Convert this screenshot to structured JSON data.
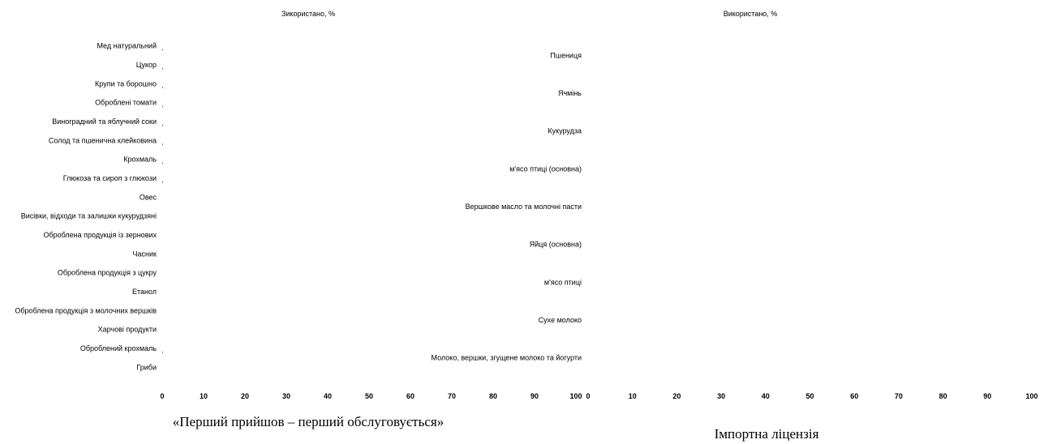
{
  "chart_data": [
    {
      "type": "bar",
      "orientation": "horizontal",
      "title": "Зикористано, %",
      "caption": "«Перший прийшов – перший обслуговується»",
      "categories": [
        "Мед натуральний",
        "Цукор",
        "Крупи та борошно",
        "Оброблені томати",
        "Виноградний та яблучний соки",
        "Солод та пшенична клейковина",
        "Крохмаль",
        "Глюкоза та сироп з глюкози",
        "Овес",
        "Висівки, відходи та залишки кукурудзяні",
        "Оброблена продукція із зернових",
        "Часник",
        "Оброблена продукція з цукру",
        "Етанол",
        "Оброблена продукція з молочних вершків",
        "Харчові продукти",
        "Оброблений крохмаль",
        "Гриби"
      ],
      "values": [
        0.2,
        0.2,
        0.2,
        0.2,
        0.2,
        0.2,
        0.2,
        0.2,
        0,
        0,
        0,
        0,
        0,
        0,
        0,
        0,
        0.2,
        0
      ],
      "xlim": [
        0,
        100
      ],
      "xticks": [
        "0",
        "10",
        "20",
        "30",
        "40",
        "50",
        "60",
        "70",
        "80",
        "90",
        "100"
      ],
      "grid": false
    },
    {
      "type": "bar",
      "orientation": "horizontal",
      "title": "Використано, %",
      "caption": "Імпортна ліцензія",
      "categories": [
        "Пшениця",
        "Ячмінь",
        "Кукурудза",
        "м'ясо птиці (основна)",
        "Вершкове масло та молочні пасти",
        "Яйця (основна)",
        "м'ясо птиці",
        "Сухе молоко",
        "Молоко, вершки, згущене молоко та йогурти"
      ],
      "values": [
        0,
        0,
        0,
        0,
        0,
        0,
        0,
        0,
        0
      ],
      "xlim": [
        0,
        100
      ],
      "xticks": [
        "0",
        "10",
        "20",
        "30",
        "40",
        "50",
        "60",
        "70",
        "80",
        "90",
        "100"
      ],
      "grid": false
    }
  ]
}
